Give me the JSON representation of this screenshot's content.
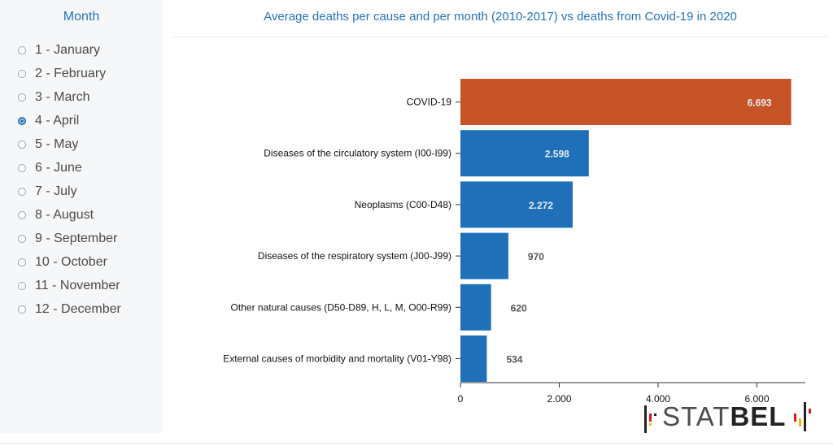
{
  "sidebar": {
    "title": "Month",
    "selected_index": 3,
    "items": [
      {
        "label": "1 - January"
      },
      {
        "label": "2 - February"
      },
      {
        "label": "3 - March"
      },
      {
        "label": "4 - April"
      },
      {
        "label": "5 - May"
      },
      {
        "label": "6 - June"
      },
      {
        "label": "7 - July"
      },
      {
        "label": "8 - August"
      },
      {
        "label": "9 - September"
      },
      {
        "label": "10 - October"
      },
      {
        "label": "11 - November"
      },
      {
        "label": "12 - December"
      }
    ]
  },
  "logo": {
    "text_light": "STAT",
    "text_bold": "BEL"
  },
  "colors": {
    "accent": "#2473b8",
    "covid": "#c65426",
    "cause": "#1f70b8"
  },
  "chart_data": {
    "type": "bar",
    "orientation": "horizontal",
    "title": "Average deaths per cause and per month (2010-2017) vs deaths from Covid-19 in 2020",
    "categories": [
      "COVID-19",
      "Diseases of the circulatory system (I00-I99)",
      "Neoplasms (C00-D48)",
      "Diseases of the respiratory system (J00-J99)",
      "Other natural causes (D50-D89, H, L, M, O00-R99)",
      "External causes of morbidity and mortality (V01-Y98)"
    ],
    "values": [
      6693,
      2598,
      2272,
      970,
      620,
      534
    ],
    "value_labels": [
      "6.693",
      "2.598",
      "2.272",
      "970",
      "620",
      "534"
    ],
    "bar_colors": [
      "#c65426",
      "#1f70b8",
      "#1f70b8",
      "#1f70b8",
      "#1f70b8",
      "#1f70b8"
    ],
    "xlim": [
      0,
      7000
    ],
    "x_ticks": [
      0,
      2000,
      4000,
      6000
    ],
    "x_tick_labels": [
      "0",
      "2.000",
      "4.000",
      "6.000"
    ],
    "xlabel": "",
    "ylabel": "",
    "grid": false
  }
}
